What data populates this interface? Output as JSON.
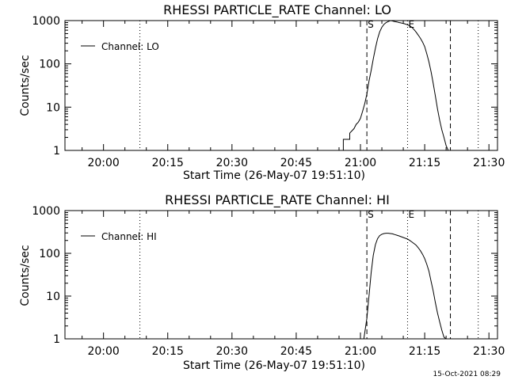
{
  "colors": {
    "background": "#ffffff",
    "foreground": "#000000"
  },
  "footer": {
    "timestamp": "15-Oct-2021 08:29"
  },
  "chart_data": [
    {
      "type": "line",
      "title": "RHESSI PARTICLE_RATE Channel: LO",
      "xlabel": "Start Time (26-May-07 19:51:10)",
      "ylabel": "Counts/sec",
      "yscale": "log",
      "ylim": [
        1,
        1000
      ],
      "ytick_values": [
        1,
        10,
        100,
        1000
      ],
      "ytick_labels": [
        "1",
        "10",
        "100",
        "1000"
      ],
      "xlim_minutes": [
        -9,
        92
      ],
      "xtick_values_minutes": [
        0,
        15,
        30,
        45,
        60,
        75,
        90
      ],
      "xtick_labels": [
        "20:00",
        "20:15",
        "20:30",
        "20:45",
        "21:00",
        "21:15",
        "21:30"
      ],
      "legend": {
        "position": "upper-left",
        "label": "Channel: LO"
      },
      "grid": false,
      "markers": [
        {
          "label": "S",
          "x_minutes": 61.5,
          "style": "dashed"
        },
        {
          "label": "E",
          "x_minutes": 71,
          "style": "dotted"
        }
      ],
      "vlines": [
        {
          "x_minutes": 8.5,
          "style": "dotted"
        },
        {
          "x_minutes": 81,
          "style": "dashed"
        },
        {
          "x_minutes": 87.5,
          "style": "dotted"
        }
      ],
      "series": [
        {
          "name": "Channel: LO",
          "x_minutes": [
            56,
            56,
            57.5,
            57.5,
            58.5,
            59,
            59.5,
            60,
            60.5,
            61,
            61.5,
            62,
            62.5,
            63,
            63.5,
            64,
            64.5,
            65,
            65.5,
            66,
            66.5,
            67,
            67.5,
            68,
            68.5,
            69,
            69.5,
            70,
            70.5,
            71,
            71.5,
            72,
            72.5,
            73,
            73.5,
            74,
            74.5,
            75,
            75.5,
            76,
            76.5,
            77,
            77.5,
            78,
            78.5,
            79,
            79.5,
            80,
            80.5
          ],
          "values": [
            1,
            1.8,
            1.8,
            2.5,
            3.2,
            4.0,
            4.5,
            5.5,
            8,
            12,
            20,
            40,
            70,
            130,
            230,
            380,
            550,
            700,
            820,
            900,
            950,
            1000,
            980,
            950,
            930,
            900,
            880,
            860,
            830,
            800,
            760,
            700,
            620,
            540,
            460,
            390,
            320,
            250,
            170,
            110,
            65,
            35,
            18,
            9,
            5,
            3,
            2,
            1.3,
            1
          ]
        }
      ]
    },
    {
      "type": "line",
      "title": "RHESSI PARTICLE_RATE Channel: HI",
      "xlabel": "Start Time (26-May-07 19:51:10)",
      "ylabel": "Counts/sec",
      "yscale": "log",
      "ylim": [
        1,
        1000
      ],
      "ytick_values": [
        1,
        10,
        100,
        1000
      ],
      "ytick_labels": [
        "1",
        "10",
        "100",
        "1000"
      ],
      "xlim_minutes": [
        -9,
        92
      ],
      "xtick_values_minutes": [
        0,
        15,
        30,
        45,
        60,
        75,
        90
      ],
      "xtick_labels": [
        "20:00",
        "20:15",
        "20:30",
        "20:45",
        "21:00",
        "21:15",
        "21:30"
      ],
      "legend": {
        "position": "upper-left",
        "label": "Channel: HI"
      },
      "grid": false,
      "markers": [
        {
          "label": "S",
          "x_minutes": 61.5,
          "style": "dashed"
        },
        {
          "label": "E",
          "x_minutes": 71,
          "style": "dotted"
        }
      ],
      "vlines": [
        {
          "x_minutes": 8.5,
          "style": "dotted"
        },
        {
          "x_minutes": 81,
          "style": "dashed"
        },
        {
          "x_minutes": 87.5,
          "style": "dotted"
        }
      ],
      "series": [
        {
          "name": "Channel: HI",
          "x_minutes": [
            60.8,
            61.5,
            62,
            62.5,
            63,
            63.5,
            64,
            64.5,
            65,
            65.5,
            66,
            66.5,
            67,
            67.5,
            68,
            68.5,
            69,
            69.5,
            70,
            70.5,
            71,
            71.5,
            72,
            72.5,
            73,
            73.5,
            74,
            74.5,
            75,
            75.5,
            76,
            76.5,
            77,
            77.5,
            78,
            78.5,
            79,
            79.5,
            80
          ],
          "values": [
            1,
            3,
            10,
            35,
            90,
            160,
            220,
            260,
            280,
            290,
            295,
            295,
            290,
            285,
            275,
            265,
            255,
            245,
            235,
            225,
            215,
            200,
            185,
            170,
            155,
            135,
            115,
            95,
            75,
            55,
            38,
            22,
            13,
            7,
            4,
            2.5,
            1.6,
            1.1,
            1
          ]
        }
      ]
    }
  ]
}
